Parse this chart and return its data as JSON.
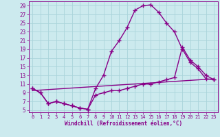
{
  "xlabel": "Windchill (Refroidissement éolien,°C)",
  "bg_color": "#cceaee",
  "grid_color": "#aad4da",
  "line_color": "#880088",
  "xlim": [
    -0.5,
    23.5
  ],
  "ylim": [
    4.5,
    30
  ],
  "yticks": [
    5,
    7,
    9,
    11,
    13,
    15,
    17,
    19,
    21,
    23,
    25,
    27,
    29
  ],
  "xticks": [
    0,
    1,
    2,
    3,
    4,
    5,
    6,
    7,
    8,
    9,
    10,
    11,
    12,
    13,
    14,
    15,
    16,
    17,
    18,
    19,
    20,
    21,
    22,
    23
  ],
  "curve1_x": [
    0,
    1,
    2,
    3,
    4,
    5,
    6,
    7,
    8,
    9,
    10,
    11,
    12,
    13,
    14,
    15,
    16,
    17,
    18,
    19,
    20,
    21,
    22,
    23
  ],
  "curve1_y": [
    10,
    9,
    6.5,
    7,
    6.5,
    6,
    5.5,
    5.2,
    10,
    13,
    18.5,
    21,
    24,
    28,
    29,
    29.2,
    27.5,
    25,
    23,
    19,
    16,
    14.5,
    12.2,
    12
  ],
  "curve2_x": [
    0,
    1,
    2,
    3,
    4,
    5,
    6,
    7,
    8,
    9,
    10,
    11,
    12,
    13,
    14,
    15,
    16,
    17,
    18,
    19,
    20,
    21,
    22,
    23
  ],
  "curve2_y": [
    10,
    9,
    6.5,
    7,
    6.5,
    6,
    5.5,
    5.2,
    8.5,
    9,
    9.5,
    9.5,
    10,
    10.5,
    11,
    11,
    11.5,
    12,
    12.5,
    19.5,
    16.5,
    15,
    13,
    12
  ],
  "curve3_x": [
    0,
    23
  ],
  "curve3_y": [
    9.5,
    12.2
  ],
  "marker": "+",
  "markersize": 4,
  "linewidth": 1.0
}
